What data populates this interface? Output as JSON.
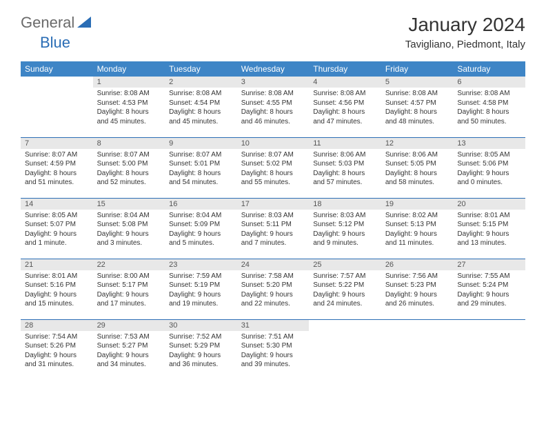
{
  "logo": {
    "general": "General",
    "blue": "Blue"
  },
  "title": "January 2024",
  "location": "Tavigliano, Piedmont, Italy",
  "colors": {
    "header_bg": "#3e85c6",
    "header_text": "#ffffff",
    "daynum_bg": "#e8e8e8",
    "border": "#2a6db5",
    "logo_gray": "#6a6a6a",
    "logo_blue": "#2a6db5"
  },
  "weekdays": [
    "Sunday",
    "Monday",
    "Tuesday",
    "Wednesday",
    "Thursday",
    "Friday",
    "Saturday"
  ],
  "weeks": [
    [
      null,
      {
        "n": "1",
        "sr": "Sunrise: 8:08 AM",
        "ss": "Sunset: 4:53 PM",
        "dl": "Daylight: 8 hours and 45 minutes."
      },
      {
        "n": "2",
        "sr": "Sunrise: 8:08 AM",
        "ss": "Sunset: 4:54 PM",
        "dl": "Daylight: 8 hours and 45 minutes."
      },
      {
        "n": "3",
        "sr": "Sunrise: 8:08 AM",
        "ss": "Sunset: 4:55 PM",
        "dl": "Daylight: 8 hours and 46 minutes."
      },
      {
        "n": "4",
        "sr": "Sunrise: 8:08 AM",
        "ss": "Sunset: 4:56 PM",
        "dl": "Daylight: 8 hours and 47 minutes."
      },
      {
        "n": "5",
        "sr": "Sunrise: 8:08 AM",
        "ss": "Sunset: 4:57 PM",
        "dl": "Daylight: 8 hours and 48 minutes."
      },
      {
        "n": "6",
        "sr": "Sunrise: 8:08 AM",
        "ss": "Sunset: 4:58 PM",
        "dl": "Daylight: 8 hours and 50 minutes."
      }
    ],
    [
      {
        "n": "7",
        "sr": "Sunrise: 8:07 AM",
        "ss": "Sunset: 4:59 PM",
        "dl": "Daylight: 8 hours and 51 minutes."
      },
      {
        "n": "8",
        "sr": "Sunrise: 8:07 AM",
        "ss": "Sunset: 5:00 PM",
        "dl": "Daylight: 8 hours and 52 minutes."
      },
      {
        "n": "9",
        "sr": "Sunrise: 8:07 AM",
        "ss": "Sunset: 5:01 PM",
        "dl": "Daylight: 8 hours and 54 minutes."
      },
      {
        "n": "10",
        "sr": "Sunrise: 8:07 AM",
        "ss": "Sunset: 5:02 PM",
        "dl": "Daylight: 8 hours and 55 minutes."
      },
      {
        "n": "11",
        "sr": "Sunrise: 8:06 AM",
        "ss": "Sunset: 5:03 PM",
        "dl": "Daylight: 8 hours and 57 minutes."
      },
      {
        "n": "12",
        "sr": "Sunrise: 8:06 AM",
        "ss": "Sunset: 5:05 PM",
        "dl": "Daylight: 8 hours and 58 minutes."
      },
      {
        "n": "13",
        "sr": "Sunrise: 8:05 AM",
        "ss": "Sunset: 5:06 PM",
        "dl": "Daylight: 9 hours and 0 minutes."
      }
    ],
    [
      {
        "n": "14",
        "sr": "Sunrise: 8:05 AM",
        "ss": "Sunset: 5:07 PM",
        "dl": "Daylight: 9 hours and 1 minute."
      },
      {
        "n": "15",
        "sr": "Sunrise: 8:04 AM",
        "ss": "Sunset: 5:08 PM",
        "dl": "Daylight: 9 hours and 3 minutes."
      },
      {
        "n": "16",
        "sr": "Sunrise: 8:04 AM",
        "ss": "Sunset: 5:09 PM",
        "dl": "Daylight: 9 hours and 5 minutes."
      },
      {
        "n": "17",
        "sr": "Sunrise: 8:03 AM",
        "ss": "Sunset: 5:11 PM",
        "dl": "Daylight: 9 hours and 7 minutes."
      },
      {
        "n": "18",
        "sr": "Sunrise: 8:03 AM",
        "ss": "Sunset: 5:12 PM",
        "dl": "Daylight: 9 hours and 9 minutes."
      },
      {
        "n": "19",
        "sr": "Sunrise: 8:02 AM",
        "ss": "Sunset: 5:13 PM",
        "dl": "Daylight: 9 hours and 11 minutes."
      },
      {
        "n": "20",
        "sr": "Sunrise: 8:01 AM",
        "ss": "Sunset: 5:15 PM",
        "dl": "Daylight: 9 hours and 13 minutes."
      }
    ],
    [
      {
        "n": "21",
        "sr": "Sunrise: 8:01 AM",
        "ss": "Sunset: 5:16 PM",
        "dl": "Daylight: 9 hours and 15 minutes."
      },
      {
        "n": "22",
        "sr": "Sunrise: 8:00 AM",
        "ss": "Sunset: 5:17 PM",
        "dl": "Daylight: 9 hours and 17 minutes."
      },
      {
        "n": "23",
        "sr": "Sunrise: 7:59 AM",
        "ss": "Sunset: 5:19 PM",
        "dl": "Daylight: 9 hours and 19 minutes."
      },
      {
        "n": "24",
        "sr": "Sunrise: 7:58 AM",
        "ss": "Sunset: 5:20 PM",
        "dl": "Daylight: 9 hours and 22 minutes."
      },
      {
        "n": "25",
        "sr": "Sunrise: 7:57 AM",
        "ss": "Sunset: 5:22 PM",
        "dl": "Daylight: 9 hours and 24 minutes."
      },
      {
        "n": "26",
        "sr": "Sunrise: 7:56 AM",
        "ss": "Sunset: 5:23 PM",
        "dl": "Daylight: 9 hours and 26 minutes."
      },
      {
        "n": "27",
        "sr": "Sunrise: 7:55 AM",
        "ss": "Sunset: 5:24 PM",
        "dl": "Daylight: 9 hours and 29 minutes."
      }
    ],
    [
      {
        "n": "28",
        "sr": "Sunrise: 7:54 AM",
        "ss": "Sunset: 5:26 PM",
        "dl": "Daylight: 9 hours and 31 minutes."
      },
      {
        "n": "29",
        "sr": "Sunrise: 7:53 AM",
        "ss": "Sunset: 5:27 PM",
        "dl": "Daylight: 9 hours and 34 minutes."
      },
      {
        "n": "30",
        "sr": "Sunrise: 7:52 AM",
        "ss": "Sunset: 5:29 PM",
        "dl": "Daylight: 9 hours and 36 minutes."
      },
      {
        "n": "31",
        "sr": "Sunrise: 7:51 AM",
        "ss": "Sunset: 5:30 PM",
        "dl": "Daylight: 9 hours and 39 minutes."
      },
      null,
      null,
      null
    ]
  ]
}
